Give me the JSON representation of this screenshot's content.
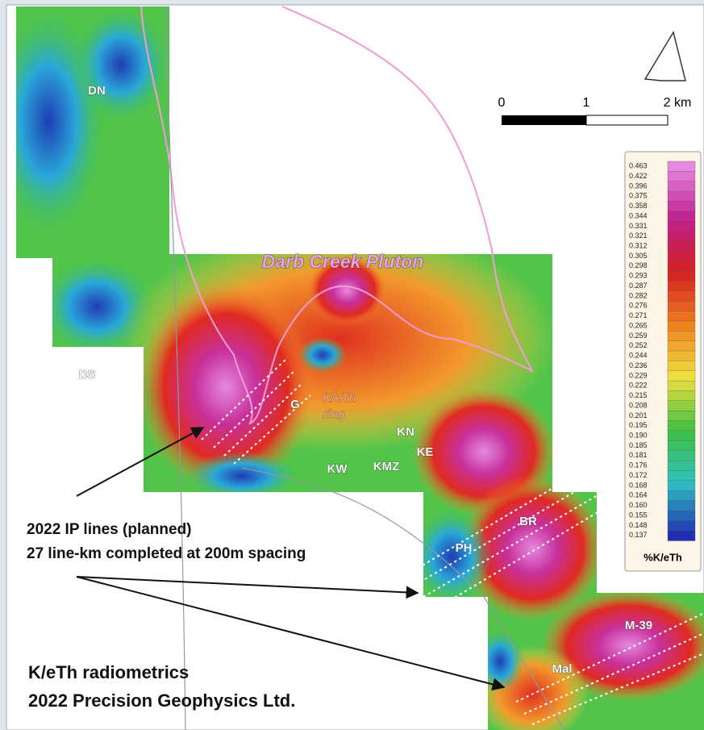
{
  "map": {
    "title": "Darb Creek Pluton",
    "scale_bar": {
      "labels": [
        "0",
        "1",
        "2 km"
      ]
    },
    "places": [
      {
        "label": "DN"
      },
      {
        "label": "DS"
      },
      {
        "label": "G"
      },
      {
        "label": "KN"
      },
      {
        "label": "KE"
      },
      {
        "label": "KW"
      },
      {
        "label": "KMZ"
      },
      {
        "label": "BR"
      },
      {
        "label": "PH"
      },
      {
        "label": "M-39"
      },
      {
        "label": "Mal"
      }
    ],
    "ring_label": [
      "K/eTh",
      "ring"
    ],
    "annotation": [
      "2022 IP lines (planned)",
      "27 line-km completed at 200m spacing"
    ],
    "credit": [
      "K/eTh radiometrics",
      "2022 Precision Geophysics Ltd."
    ],
    "legend": {
      "title": "%K/eTh",
      "labels": [
        "0.463",
        "0.422",
        "0.396",
        "0.375",
        "0.358",
        "0.344",
        "0.331",
        "0.321",
        "0.312",
        "0.305",
        "0.298",
        "0.293",
        "0.287",
        "0.282",
        "0.276",
        "0.271",
        "0.265",
        "0.259",
        "0.252",
        "0.244",
        "0.236",
        "0.229",
        "0.222",
        "0.215",
        "0.208",
        "0.201",
        "0.195",
        "0.190",
        "0.185",
        "0.181",
        "0.176",
        "0.172",
        "0.168",
        "0.164",
        "0.160",
        "0.155",
        "0.148",
        "0.137"
      ]
    }
  }
}
